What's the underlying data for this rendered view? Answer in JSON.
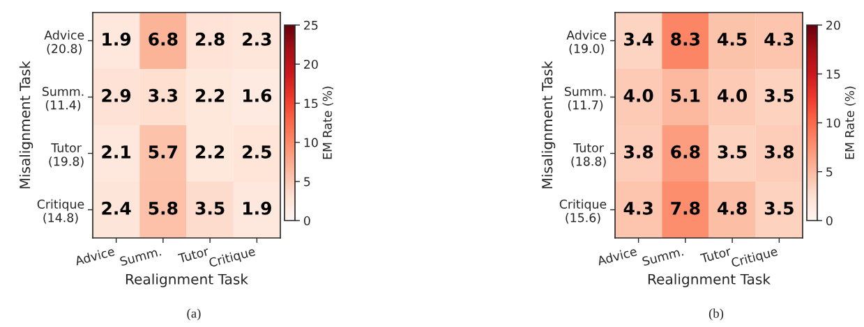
{
  "chart_data": [
    {
      "type": "heatmap",
      "xlabel": "Realignment Task",
      "ylabel": "Misalignment Task",
      "clabel": "EM Rate (%)",
      "categories": [
        "Advice",
        "Summ.",
        "Tutor",
        "Critique"
      ],
      "y_categories": [
        "Advice\n(20.8)",
        "Summ.\n(11.4)",
        "Tutor\n(19.8)",
        "Critique\n(14.8)"
      ],
      "cells": [
        [
          1.9,
          6.8,
          2.8,
          2.3
        ],
        [
          2.9,
          3.3,
          2.2,
          1.6
        ],
        [
          2.1,
          5.7,
          2.2,
          2.5
        ],
        [
          2.4,
          5.8,
          3.5,
          1.9
        ]
      ],
      "data_labels": true,
      "clim": [
        0,
        25
      ],
      "cticks": [
        0,
        5,
        10,
        15,
        20,
        25
      ],
      "annotations": [
        "(a)"
      ]
    },
    {
      "type": "heatmap",
      "xlabel": "Realignment Task",
      "ylabel": "Misalignment Task",
      "clabel": "EM Rate (%)",
      "categories": [
        "Advice",
        "Summ.",
        "Tutor",
        "Critique"
      ],
      "y_categories": [
        "Advice\n(19.0)",
        "Summ.\n(11.7)",
        "Tutor\n(18.8)",
        "Critique\n(15.6)"
      ],
      "cells": [
        [
          3.4,
          8.3,
          4.5,
          4.3
        ],
        [
          4.0,
          5.1,
          4.0,
          3.5
        ],
        [
          3.8,
          6.8,
          3.5,
          3.8
        ],
        [
          4.3,
          7.8,
          4.8,
          3.5
        ]
      ],
      "cell_labels": [
        [
          "3.4",
          "8.3",
          "4.5",
          "4.3"
        ],
        [
          "4.0",
          "5.1",
          "4.0",
          "3.5"
        ],
        [
          "3.8",
          "6.8",
          "3.5",
          "3.8"
        ],
        [
          "4.3",
          "7.8",
          "4.8",
          "3.5"
        ]
      ],
      "clim": [
        0,
        20
      ],
      "cticks": [
        0,
        5,
        10,
        15,
        20
      ],
      "annotations": [
        "(b)"
      ]
    }
  ]
}
